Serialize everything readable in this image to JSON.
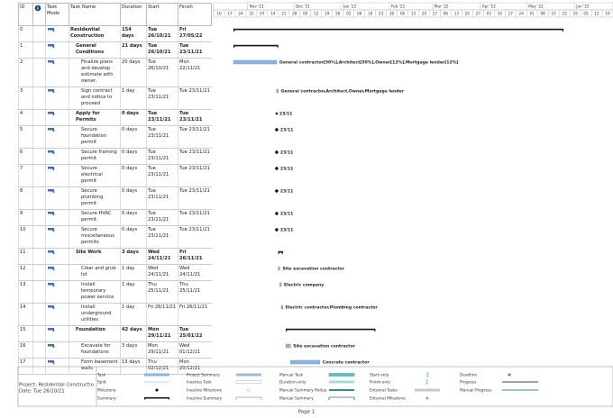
{
  "table": {
    "headers": {
      "id": "ID",
      "mode": "Task Mode",
      "name": "Task Name",
      "duration": "Duration",
      "start": "Start",
      "finish": "Finish"
    },
    "rows": [
      {
        "id": "0",
        "name": "Residential Construction",
        "duration": "154 days",
        "start": "Tue 26/10/21",
        "finish": "Fri 27/05/22",
        "level": 0
      },
      {
        "id": "1",
        "name": "General Conditions",
        "duration": "21 days",
        "start": "Tue 26/10/21",
        "finish": "Tue 23/11/21",
        "level": 1
      },
      {
        "id": "2",
        "name": "Finalize plans and develop estimate with owner,",
        "duration": "20 days",
        "start": "Tue 26/10/21",
        "finish": "Mon 22/11/21",
        "level": 2,
        "resources": "General contractor[50%],Architect[50%],Owner[12%],Mortgage lender[12%]"
      },
      {
        "id": "3",
        "name": "Sign contract and notice to proceed",
        "duration": "1 day",
        "start": "Tue 23/11/21",
        "finish": "Tue 23/11/21",
        "level": 2,
        "resources": "General contractor,Architect,Owner,Mortgage lender"
      },
      {
        "id": "4",
        "name": "Apply for Permits",
        "duration": "0 days",
        "start": "Tue 23/11/21",
        "finish": "Tue 23/11/21",
        "level": 1,
        "resources": "23/11"
      },
      {
        "id": "5",
        "name": "Secure foundation permit",
        "duration": "0 days",
        "start": "Tue 23/11/21",
        "finish": "Tue 23/11/21",
        "level": 2,
        "resources": "23/11"
      },
      {
        "id": "6",
        "name": "Secure framing permit",
        "duration": "0 days",
        "start": "Tue 23/11/21",
        "finish": "Tue 23/11/21",
        "level": 2,
        "resources": "23/11"
      },
      {
        "id": "7",
        "name": "Secure electrical permit",
        "duration": "0 days",
        "start": "Tue 23/11/21",
        "finish": "Tue 23/11/21",
        "level": 2,
        "resources": "23/11"
      },
      {
        "id": "8",
        "name": "Secure plumbing permit",
        "duration": "0 days",
        "start": "Tue 23/11/21",
        "finish": "Tue 23/11/21",
        "level": 2,
        "resources": "23/11"
      },
      {
        "id": "9",
        "name": "Secure HVAC permit",
        "duration": "0 days",
        "start": "Tue 23/11/21",
        "finish": "Tue 23/11/21",
        "level": 2,
        "resources": "23/11"
      },
      {
        "id": "10",
        "name": "Secure miscellaneous permits",
        "duration": "0 days",
        "start": "Tue 23/11/21",
        "finish": "Tue 23/11/21",
        "level": 2,
        "resources": "23/11"
      },
      {
        "id": "11",
        "name": "Site Work",
        "duration": "3 days",
        "start": "Wed 24/11/21",
        "finish": "Fri 26/11/21",
        "level": 1
      },
      {
        "id": "12",
        "name": "Clear and grub lot",
        "duration": "1 day",
        "start": "Wed 24/11/21",
        "finish": "Wed 24/11/21",
        "level": 2,
        "resources": "Site excavation contractor"
      },
      {
        "id": "13",
        "name": "Install temporary power service",
        "duration": "1 day",
        "start": "Thu 25/11/21",
        "finish": "Thu 25/11/21",
        "level": 2,
        "resources": "Electric company"
      },
      {
        "id": "14",
        "name": "Install underground utilities",
        "duration": "1 day",
        "start": "Fri 26/11/21",
        "finish": "Fri 26/11/21",
        "level": 2,
        "resources": "Electric contractor,Plumbing contractor"
      },
      {
        "id": "15",
        "name": "Foundation",
        "duration": "42 days",
        "start": "Mon 29/11/21",
        "finish": "Tue 25/01/22",
        "level": 1
      },
      {
        "id": "16",
        "name": "Excavate for foundations",
        "duration": "3 days",
        "start": "Mon 29/11/21",
        "finish": "Wed 01/12/21",
        "level": 2,
        "resources": "Site excavation contractor"
      },
      {
        "id": "17",
        "name": "Form basement walls",
        "duration": "13 days",
        "start": "Thu 02/12/21",
        "finish": "Mon 20/12/21",
        "level": 2,
        "resources": "Concrete contractor"
      }
    ]
  },
  "timescale": {
    "months": [
      "Nov '21",
      "Dec '21",
      "Jan '22",
      "Feb '22",
      "Mar '22",
      "Apr '22",
      "May '22",
      "Jun '22"
    ],
    "weeks": [
      "10",
      "17",
      "24",
      "31",
      "07",
      "14",
      "21",
      "28",
      "05",
      "12",
      "19",
      "26",
      "02",
      "09",
      "16",
      "23",
      "30",
      "06",
      "13",
      "20",
      "27",
      "06",
      "13",
      "20",
      "27",
      "03",
      "10",
      "17",
      "24",
      "01",
      "08",
      "15",
      "22",
      "29",
      "05",
      "12",
      "19"
    ]
  },
  "legend": {
    "project": "Project: Residential Constructio",
    "date": "Date: Tue 26/10/21",
    "items": [
      "Task",
      "Split",
      "Milestone",
      "Summary",
      "Project Summary",
      "Inactive Task",
      "Inactive Milestone",
      "Inactive Summary",
      "Manual Task",
      "Duration-only",
      "Manual Summary Rollup",
      "Manual Summary",
      "Start-only",
      "Finish-only",
      "External Tasks",
      "External Milestone",
      "Deadline",
      "Progress",
      "Manual Progress"
    ]
  },
  "footer": {
    "page": "Page 1"
  }
}
